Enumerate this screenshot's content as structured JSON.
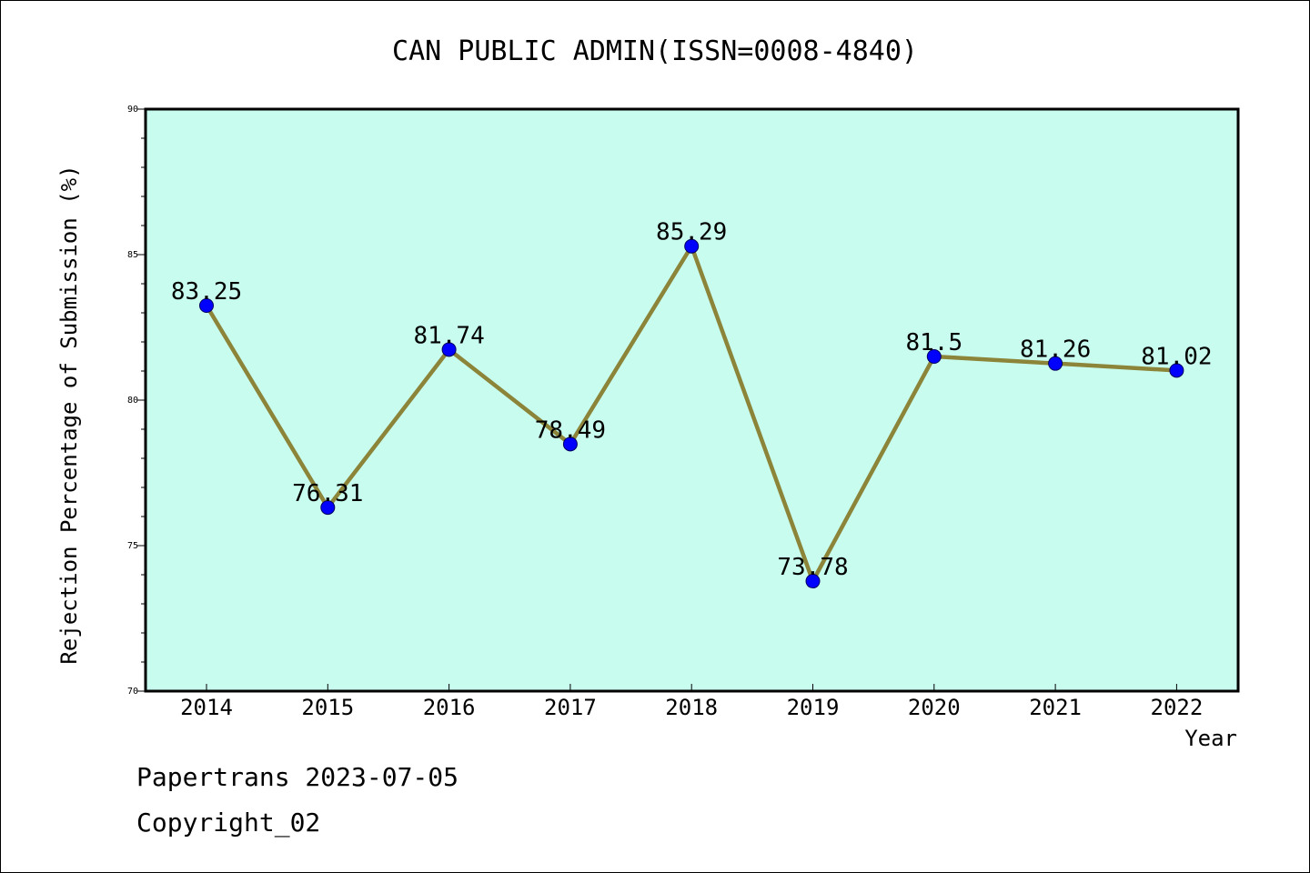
{
  "chart_data": {
    "type": "line",
    "title": "CAN PUBLIC ADMIN(ISSN=0008-4840)",
    "xlabel": "Year",
    "ylabel": "Rejection Percentage of Submission (%)",
    "categories": [
      "2014",
      "2015",
      "2016",
      "2017",
      "2018",
      "2019",
      "2020",
      "2021",
      "2022"
    ],
    "values": [
      83.25,
      76.31,
      81.74,
      78.49,
      85.29,
      73.78,
      81.5,
      81.26,
      81.02
    ],
    "data_labels": [
      "83.25",
      "76.31",
      "81.74",
      "78.49",
      "85.29",
      "73.78",
      "81.5",
      "81.26",
      "81.02"
    ],
    "ylim": [
      70,
      90
    ],
    "yticks": [
      70,
      75,
      80,
      85,
      90
    ],
    "grid": false,
    "colors": {
      "plot_background": "#c8fcee",
      "line": "#8b8439",
      "marker": "#0000ff"
    }
  },
  "footer": {
    "line1": "Papertrans 2023-07-05",
    "line2": "Copyright_02"
  }
}
